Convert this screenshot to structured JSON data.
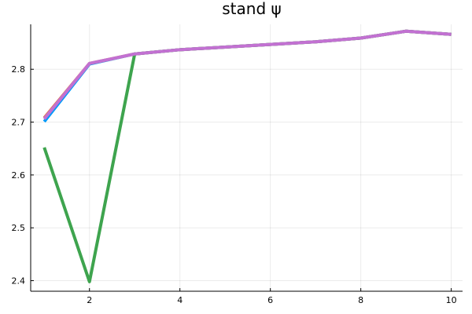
{
  "chart_data": {
    "type": "line",
    "title": "stand ψ",
    "xlabel": "",
    "ylabel": "",
    "xlim": [
      0.7,
      10.25
    ],
    "ylim": [
      2.38,
      2.885
    ],
    "xticks": [
      2,
      4,
      6,
      8,
      10
    ],
    "yticks": [
      2.4,
      2.5,
      2.6,
      2.7,
      2.8
    ],
    "xtick_labels": [
      "2",
      "4",
      "6",
      "8",
      "10"
    ],
    "ytick_labels": [
      "2.4",
      "2.5",
      "2.6",
      "2.7",
      "2.8"
    ],
    "grid": true,
    "legend": "none",
    "x": [
      1,
      2,
      3,
      4,
      5,
      6,
      7,
      8,
      9,
      10
    ],
    "series": [
      {
        "color": "#009AFA",
        "values": [
          2.701,
          2.81,
          2.829,
          2.837,
          2.842,
          2.847,
          2.852,
          2.859,
          2.872,
          2.866
        ]
      },
      {
        "color": "#E26F46",
        "values": [
          2.708,
          2.811,
          2.829,
          2.837,
          2.842,
          2.847,
          2.852,
          2.859,
          2.872,
          2.866
        ]
      },
      {
        "color": "#3EA44E",
        "values": [
          2.652,
          2.398,
          2.829,
          2.837,
          2.842,
          2.847,
          2.852,
          2.859,
          2.872,
          2.866
        ]
      },
      {
        "color": "#C271D2",
        "values": [
          2.706,
          2.811,
          2.829,
          2.837,
          2.842,
          2.847,
          2.852,
          2.859,
          2.872,
          2.866
        ]
      }
    ]
  }
}
